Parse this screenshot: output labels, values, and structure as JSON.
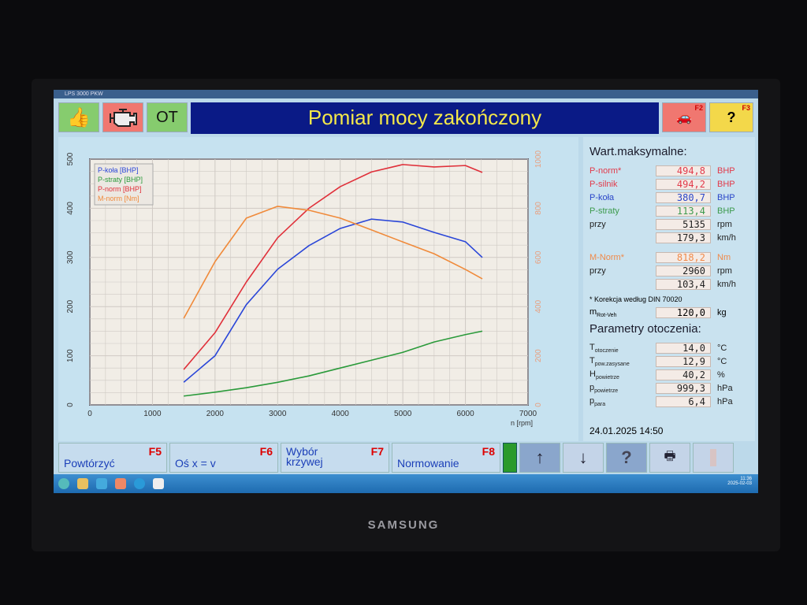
{
  "window": {
    "title": "LPS 3000 PKW"
  },
  "top": {
    "banner": "Pomiar mocy zakończony",
    "ot_label": "OT",
    "f2": "F2",
    "f3": "F3"
  },
  "side": {
    "max_title": "Wart.maksymalne:",
    "max_rows": [
      {
        "label": "P-norm*",
        "value": "494,8",
        "unit": "BHP",
        "color": "#e23a4a"
      },
      {
        "label": "P-silnik",
        "value": "494,2",
        "unit": "BHP",
        "color": "#e23a4a"
      },
      {
        "label": "P-koła",
        "value": "380,7",
        "unit": "BHP",
        "color": "#2a46c8"
      },
      {
        "label": "P-straty",
        "value": "113,4",
        "unit": "BHP",
        "color": "#3c9a4c"
      },
      {
        "label": "przy",
        "value": "5135",
        "unit": "rpm",
        "color": "#222222"
      },
      {
        "label": "",
        "value": "179,3",
        "unit": "km/h",
        "color": "#222222"
      }
    ],
    "torque_rows": [
      {
        "label": "M-Norm*",
        "value": "818,2",
        "unit": "Nm",
        "color": "#f08a4a"
      },
      {
        "label": "przy",
        "value": "2960",
        "unit": "rpm",
        "color": "#222222"
      },
      {
        "label": "",
        "value": "103,4",
        "unit": "km/h",
        "color": "#222222"
      }
    ],
    "note": "* Korekcja według DIN 70020",
    "mass": {
      "label": "m",
      "sub": "Rot-Veh",
      "value": "120,0",
      "unit": "kg"
    },
    "env_title": "Parametry otoczenia:",
    "env_rows": [
      {
        "label": "T",
        "sub": "otoczenie",
        "value": "14,0",
        "unit": "°C"
      },
      {
        "label": "T",
        "sub": "pow.zasysane",
        "value": "12,9",
        "unit": "°C"
      },
      {
        "label": "H",
        "sub": "powietrze",
        "value": "40,2",
        "unit": "%"
      },
      {
        "label": "p",
        "sub": "powietrze",
        "value": "999,3",
        "unit": "hPa"
      },
      {
        "label": "p",
        "sub": "para",
        "value": "6,4",
        "unit": "hPa"
      }
    ],
    "datetime": "24.01.2025  14:50"
  },
  "bottom": [
    {
      "label": "Powtórzyć",
      "key": "F5"
    },
    {
      "label": "Oś x = v",
      "key": "F6"
    },
    {
      "label": "Wybór krzywej",
      "key": "F7"
    },
    {
      "label": "Normowanie",
      "key": "F8"
    }
  ],
  "icons": {
    "up": "↑",
    "down": "↓",
    "help": "?"
  },
  "taskbar": {
    "time": "11:36",
    "date": "2025-02-03"
  },
  "chart_data": {
    "type": "line",
    "xlabel": "n [rpm]",
    "xlim": [
      0,
      7000
    ],
    "xticks": [
      0,
      1000,
      2000,
      3000,
      4000,
      5000,
      6000,
      7000
    ],
    "ylim_left": [
      0,
      500
    ],
    "yticks_left": [
      0,
      100,
      200,
      300,
      400,
      500
    ],
    "ylim_right": [
      0,
      1000
    ],
    "yticks_right": [
      0,
      200,
      400,
      600,
      800,
      1000
    ],
    "grid": true,
    "legend_position": "top-left",
    "x": [
      1500,
      2000,
      2500,
      3000,
      3500,
      4000,
      4500,
      5000,
      5500,
      6000,
      6270
    ],
    "series": [
      {
        "name": "P-koła [BHP]",
        "axis": "left",
        "color": "#2a46d8",
        "values": [
          46,
          100,
          204,
          276,
          324,
          359,
          378,
          372,
          351,
          332,
          300
        ]
      },
      {
        "name": "P-straty [BHP]",
        "axis": "left",
        "color": "#2a9a3a",
        "values": [
          18,
          26,
          35,
          46,
          59,
          75,
          91,
          107,
          128,
          143,
          150
        ]
      },
      {
        "name": "P-norm [BHP]",
        "axis": "left",
        "color": "#e0303a",
        "values": [
          72,
          147,
          250,
          340,
          400,
          444,
          474,
          489,
          484,
          487,
          473
        ]
      },
      {
        "name": "M-norm [Nm]",
        "axis": "right",
        "color": "#f08a3a",
        "values": [
          352,
          583,
          760,
          808,
          792,
          760,
          712,
          663,
          615,
          551,
          513
        ]
      }
    ]
  }
}
